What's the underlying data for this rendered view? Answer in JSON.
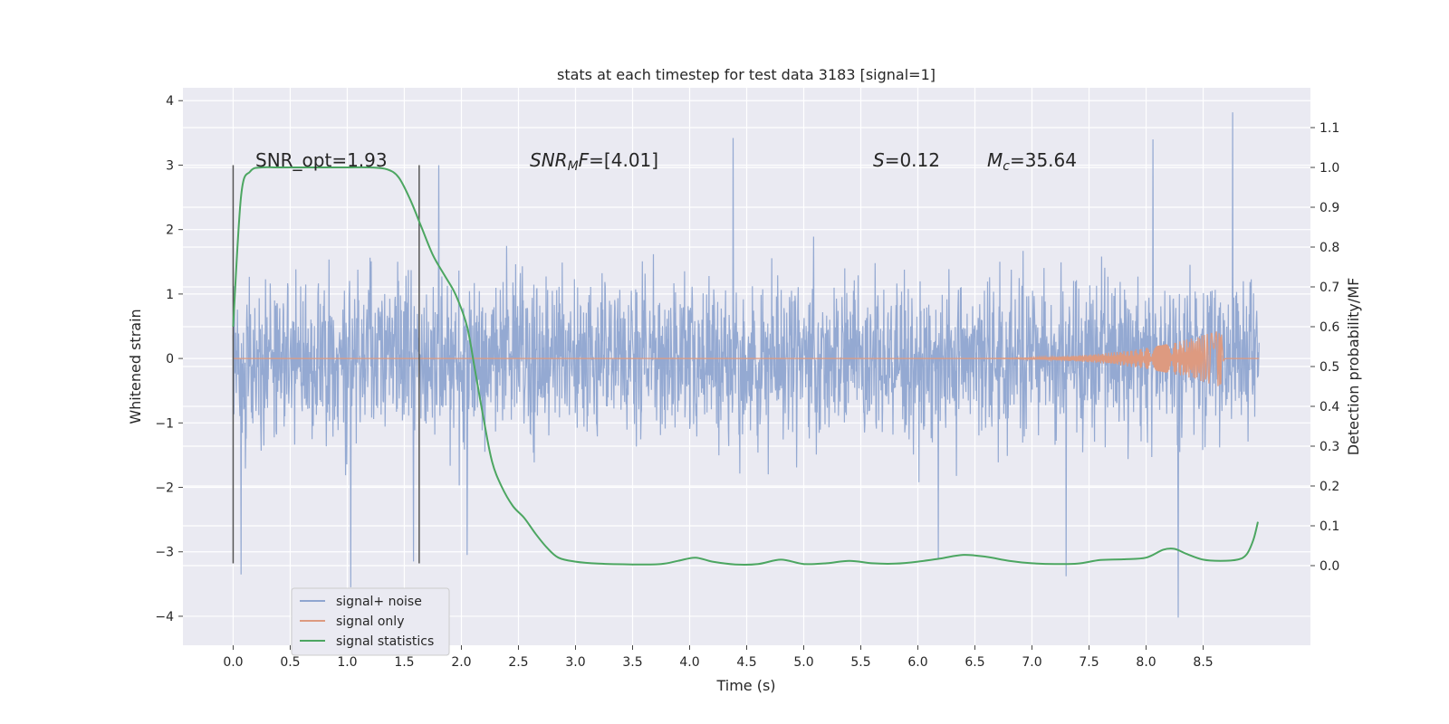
{
  "chart_data": {
    "type": "line",
    "title": "stats at each timestep for test data 3183 [signal=1]",
    "xlabel": "Time (s)",
    "ylabel_left": "Whitened strain",
    "ylabel_right": "Detection probability/MF",
    "xlim": [
      -0.44,
      9.44
    ],
    "ylim_left": [
      -4.45,
      4.2
    ],
    "ylim_right": [
      -0.2,
      1.2
    ],
    "xticks": [
      "0.0",
      "0.5",
      "1.0",
      "1.5",
      "2.0",
      "2.5",
      "3.0",
      "3.5",
      "4.0",
      "4.5",
      "5.0",
      "5.5",
      "6.0",
      "6.5",
      "7.0",
      "7.5",
      "8.0",
      "8.5"
    ],
    "yticks_left": [
      "−4",
      "−3",
      "−2",
      "−1",
      "0",
      "1",
      "2",
      "3",
      "4"
    ],
    "yticks_right": [
      "0.0",
      "0.1",
      "0.2",
      "0.3",
      "0.4",
      "0.5",
      "0.6",
      "0.7",
      "0.8",
      "0.9",
      "1.0",
      "1.1"
    ],
    "grid": true,
    "legend_placement": "lower-left",
    "annotations": {
      "snr_opt": "SNR_opt=1.93",
      "snr_mf_label": "SNR",
      "snr_mf_sub": "M",
      "snr_mf_rest": "F=[4.01]",
      "s_label": "S",
      "s_value": "=0.12",
      "mc_label": "M",
      "mc_sub": "c",
      "mc_value": "=35.64"
    },
    "vertical_markers": {
      "x": [
        0.0,
        1.63
      ],
      "y_range": [
        -3.18,
        3.0
      ],
      "color": "#555555"
    },
    "series": [
      {
        "name": "signal+ noise",
        "color": "#8fa5d0",
        "axis": "left",
        "description_values": {
          "x_range": [
            0.0,
            8.99
          ],
          "typical_band": [
            -1.5,
            1.5
          ],
          "extreme_peaks": [
            {
              "x": 0.07,
              "y": -3.35
            },
            {
              "x": 1.03,
              "y": -3.55
            },
            {
              "x": 1.58,
              "y": -3.15
            },
            {
              "x": 1.8,
              "y": 3.0
            },
            {
              "x": 2.05,
              "y": -3.05
            },
            {
              "x": 4.38,
              "y": 3.42
            },
            {
              "x": 6.18,
              "y": -3.1
            },
            {
              "x": 7.3,
              "y": -3.38
            },
            {
              "x": 8.06,
              "y": 3.4
            },
            {
              "x": 8.28,
              "y": -4.02
            },
            {
              "x": 8.76,
              "y": 3.82
            }
          ]
        }
      },
      {
        "name": "signal only",
        "color": "#dd9a80",
        "axis": "left",
        "description_values": {
          "x_range": [
            0.0,
            8.99
          ],
          "chirp_peak_x": 8.66,
          "chirp_peak_amplitude": 0.45
        }
      },
      {
        "name": "signal statistics",
        "color": "#4ca661",
        "axis": "right",
        "x": [
          0.0,
          0.07,
          0.15,
          0.25,
          0.4,
          0.6,
          0.8,
          1.0,
          1.2,
          1.35,
          1.45,
          1.55,
          1.65,
          1.75,
          1.85,
          1.95,
          2.05,
          2.12,
          2.2,
          2.27,
          2.35,
          2.45,
          2.55,
          2.65,
          2.75,
          2.85,
          3.0,
          3.2,
          3.5,
          3.75,
          3.9,
          4.05,
          4.2,
          4.4,
          4.6,
          4.8,
          5.0,
          5.2,
          5.4,
          5.6,
          5.8,
          6.0,
          6.2,
          6.4,
          6.6,
          6.8,
          7.0,
          7.2,
          7.4,
          7.6,
          7.8,
          8.0,
          8.15,
          8.25,
          8.35,
          8.5,
          8.65,
          8.8,
          8.88,
          8.94,
          8.98
        ],
        "values": [
          0.6,
          0.93,
          0.99,
          1.0,
          1.0,
          1.0,
          1.0,
          1.0,
          1.0,
          0.995,
          0.975,
          0.92,
          0.85,
          0.78,
          0.73,
          0.68,
          0.6,
          0.49,
          0.36,
          0.26,
          0.2,
          0.15,
          0.12,
          0.08,
          0.045,
          0.02,
          0.01,
          0.005,
          0.003,
          0.004,
          0.012,
          0.02,
          0.01,
          0.003,
          0.004,
          0.015,
          0.004,
          0.006,
          0.012,
          0.006,
          0.005,
          0.01,
          0.018,
          0.027,
          0.022,
          0.012,
          0.006,
          0.004,
          0.005,
          0.014,
          0.016,
          0.02,
          0.04,
          0.042,
          0.03,
          0.015,
          0.012,
          0.015,
          0.028,
          0.065,
          0.11
        ]
      }
    ]
  }
}
